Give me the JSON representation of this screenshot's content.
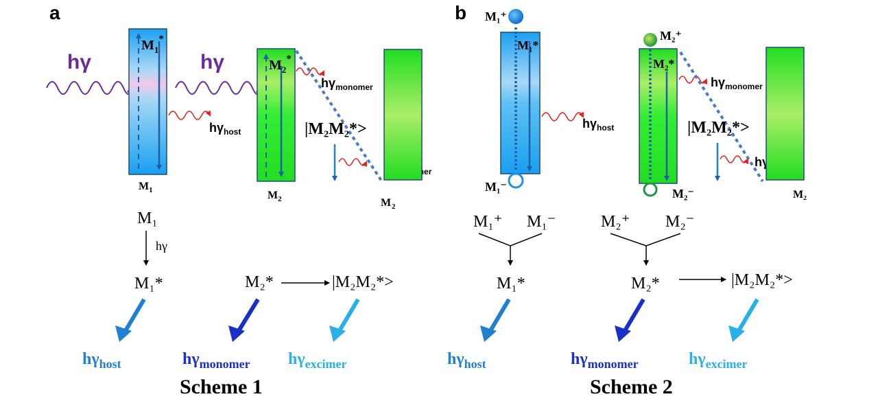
{
  "panel_a": {
    "label": "a",
    "excitation": "hγ",
    "box1": {
      "top": "M",
      "top_sub": "1",
      "top_sup": "*",
      "bottom": "M",
      "bottom_sub": "1"
    },
    "box2": {
      "top": "M",
      "top_sub": "2",
      "top_sup": "*",
      "bottom": "M",
      "bottom_sub": "2"
    },
    "box3": {
      "bottom": "M",
      "bottom_sub": "2"
    },
    "emission_host": {
      "main": "hγ",
      "sub": "host"
    },
    "emission_monomer": {
      "main": "hγ",
      "sub": "monomer"
    },
    "emission_excimer": {
      "main": "hγ",
      "sub": "excimer"
    },
    "excimer_state": "|M₂M₂*>",
    "scheme": {
      "m1": "M₁",
      "arrow_label": "hγ",
      "m1_excited": "M₁*",
      "m2_excited": "M₂*",
      "excimer": "|M₂M₂*>",
      "out_host": {
        "main": "hγ",
        "sub": "host"
      },
      "out_monomer": {
        "main": "hγ",
        "sub": "monomer"
      },
      "out_excimer": {
        "main": "hγ",
        "sub": "excimer"
      },
      "title": "Scheme 1"
    }
  },
  "panel_b": {
    "label": "b",
    "box1": {
      "plus": "M₁⁺",
      "inner": "M₁*",
      "minus": "M₁⁻"
    },
    "box2": {
      "plus": "M₂⁺",
      "inner": "M₂*",
      "minus": "M₂⁻"
    },
    "box3": {
      "bottom": "M₂"
    },
    "emission_host": {
      "main": "hγ",
      "sub": "host"
    },
    "emission_monomer": {
      "main": "hγ",
      "sub": "monomer"
    },
    "emission_excimer": {
      "main": "hγ",
      "sub": "excimer"
    },
    "excimer_state": "|M₂M₂*>",
    "scheme": {
      "m1_plus": "M₁⁺",
      "m1_minus": "M₁⁻",
      "m2_plus": "M₂⁺",
      "m2_minus": "M₂⁻",
      "m1_excited": "M₁*",
      "m2_excited": "M₂*",
      "excimer": "|M₂M₂*>",
      "out_host": {
        "main": "hγ",
        "sub": "host"
      },
      "out_monomer": {
        "main": "hγ",
        "sub": "monomer"
      },
      "out_excimer": {
        "main": "hγ",
        "sub": "excimer"
      },
      "title": "Scheme 2"
    }
  },
  "colors": {
    "host": "#1f7fd0",
    "monomer": "#1a2fc8",
    "excimer": "#2ab0e8",
    "purple": "#6a2a9a",
    "wave_red": "#e8201a",
    "dark_blue": "#1f5fa8"
  }
}
